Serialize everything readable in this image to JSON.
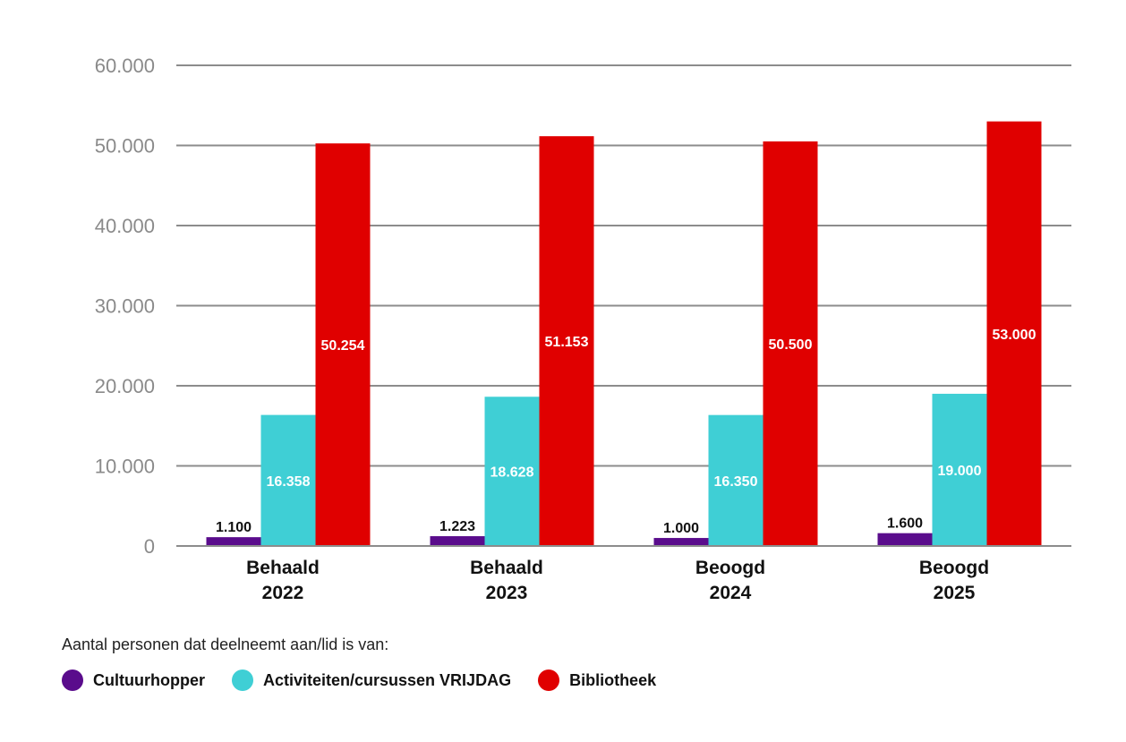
{
  "chart_data": {
    "type": "bar",
    "categories": [
      [
        "Behaald",
        "2022"
      ],
      [
        "Behaald",
        "2023"
      ],
      [
        "Beoogd",
        "2024"
      ],
      [
        "Beoogd",
        "2025"
      ]
    ],
    "series": [
      {
        "name": "Cultuurhopper",
        "values": [
          1100,
          1223,
          1000,
          1600
        ],
        "labels": [
          "1.100",
          "1.223",
          "1.000",
          "1.600"
        ],
        "color": "#5a0c8c",
        "label_color": "#111111"
      },
      {
        "name": "Activiteiten/cursussen VRIJDAG",
        "values": [
          16358,
          18628,
          16350,
          19000
        ],
        "labels": [
          "16.358",
          "18.628",
          "16.350",
          "19.000"
        ],
        "color": "#3fcfd5",
        "label_color": "#ffffff"
      },
      {
        "name": "Bibliotheek",
        "values": [
          50254,
          51153,
          50500,
          53000
        ],
        "labels": [
          "50.254",
          "51.153",
          "50.500",
          "53.000"
        ],
        "color": "#e00000",
        "label_color": "#ffffff"
      }
    ],
    "y_ticks": [
      0,
      10000,
      20000,
      30000,
      40000,
      50000,
      60000
    ],
    "y_tick_labels": [
      "0",
      "10.000",
      "20.000",
      "30.000",
      "40.000",
      "50.000",
      "60.000"
    ],
    "ylim": [
      0,
      60000
    ],
    "grid": true,
    "legend_position": "bottom-left",
    "gridline_color": "#8c8c8c",
    "legend_caption": "Aantal personen dat deelneemt aan/lid is van:"
  }
}
